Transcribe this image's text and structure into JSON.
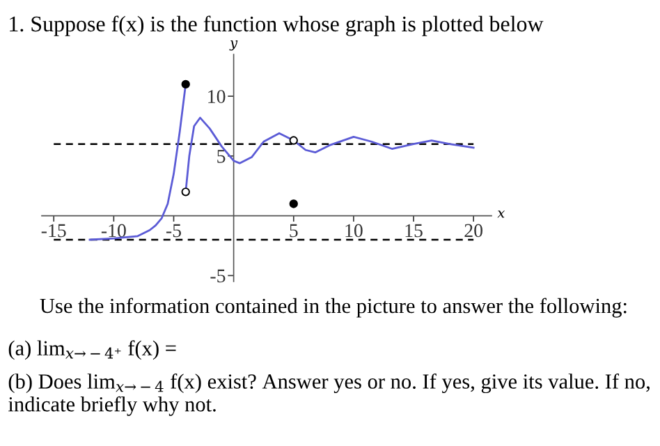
{
  "chart_data": {
    "type": "line",
    "title": "1. Suppose f(x) is the function whose graph is plotted below",
    "xlabel": "x",
    "ylabel": "y",
    "xlim": [
      -16,
      21.5
    ],
    "ylim": [
      -5.5,
      13.5
    ],
    "xticks": [
      -15,
      -10,
      -5,
      5,
      10,
      15,
      20
    ],
    "yticks": [
      -5,
      5,
      10
    ],
    "grid": false,
    "series": [
      {
        "color": "#5b5bd6",
        "marker": "none",
        "x": [
          -12,
          -10,
          -8,
          -7,
          -6.5,
          -6,
          -5.5,
          -5,
          -4.5,
          -4
        ],
        "values": [
          -2,
          -1.9,
          -1.7,
          -1.2,
          -0.8,
          -0.2,
          1,
          3.5,
          7,
          11
        ]
      },
      {
        "color": "#5b5bd6",
        "marker": "none",
        "x": [
          -4,
          -3.7,
          -3.3,
          -2.8,
          -2,
          -1,
          0,
          0.5,
          1.5,
          2.5,
          3.8,
          5,
          6,
          6.8,
          8,
          10,
          11.5,
          13.2,
          15,
          16.5,
          18,
          20
        ],
        "values": [
          2,
          5,
          7.5,
          8.2,
          7.3,
          5.8,
          4.6,
          4.4,
          4.9,
          6.2,
          6.9,
          6.3,
          5.5,
          5.3,
          5.9,
          6.6,
          6.2,
          5.6,
          6,
          6.3,
          6,
          5.7
        ]
      },
      {
        "type": "scatter",
        "color": "#000000",
        "marker": "circle",
        "x": [
          -4,
          5
        ],
        "values": [
          11,
          1
        ]
      },
      {
        "type": "scatter",
        "color": "#ffffff",
        "marker": "circle",
        "x": [
          -4,
          5
        ],
        "values": [
          2,
          6.3
        ]
      }
    ],
    "ref_lines": [
      {
        "axis": "y",
        "value": 6,
        "color": "#000000",
        "line_style": "dashed"
      },
      {
        "axis": "y",
        "value": -2,
        "color": "#000000",
        "line_style": "dashed"
      }
    ],
    "annotations": [
      "Use the information contained in the picture to answer the following:",
      "(a) lim$_{x→−4⁺}$ f(x) =",
      "(b) Does lim$_{x→−4}$ f(x) exist? Answer yes or no. If yes, give its value. If no, indicate briefly why not."
    ]
  }
}
